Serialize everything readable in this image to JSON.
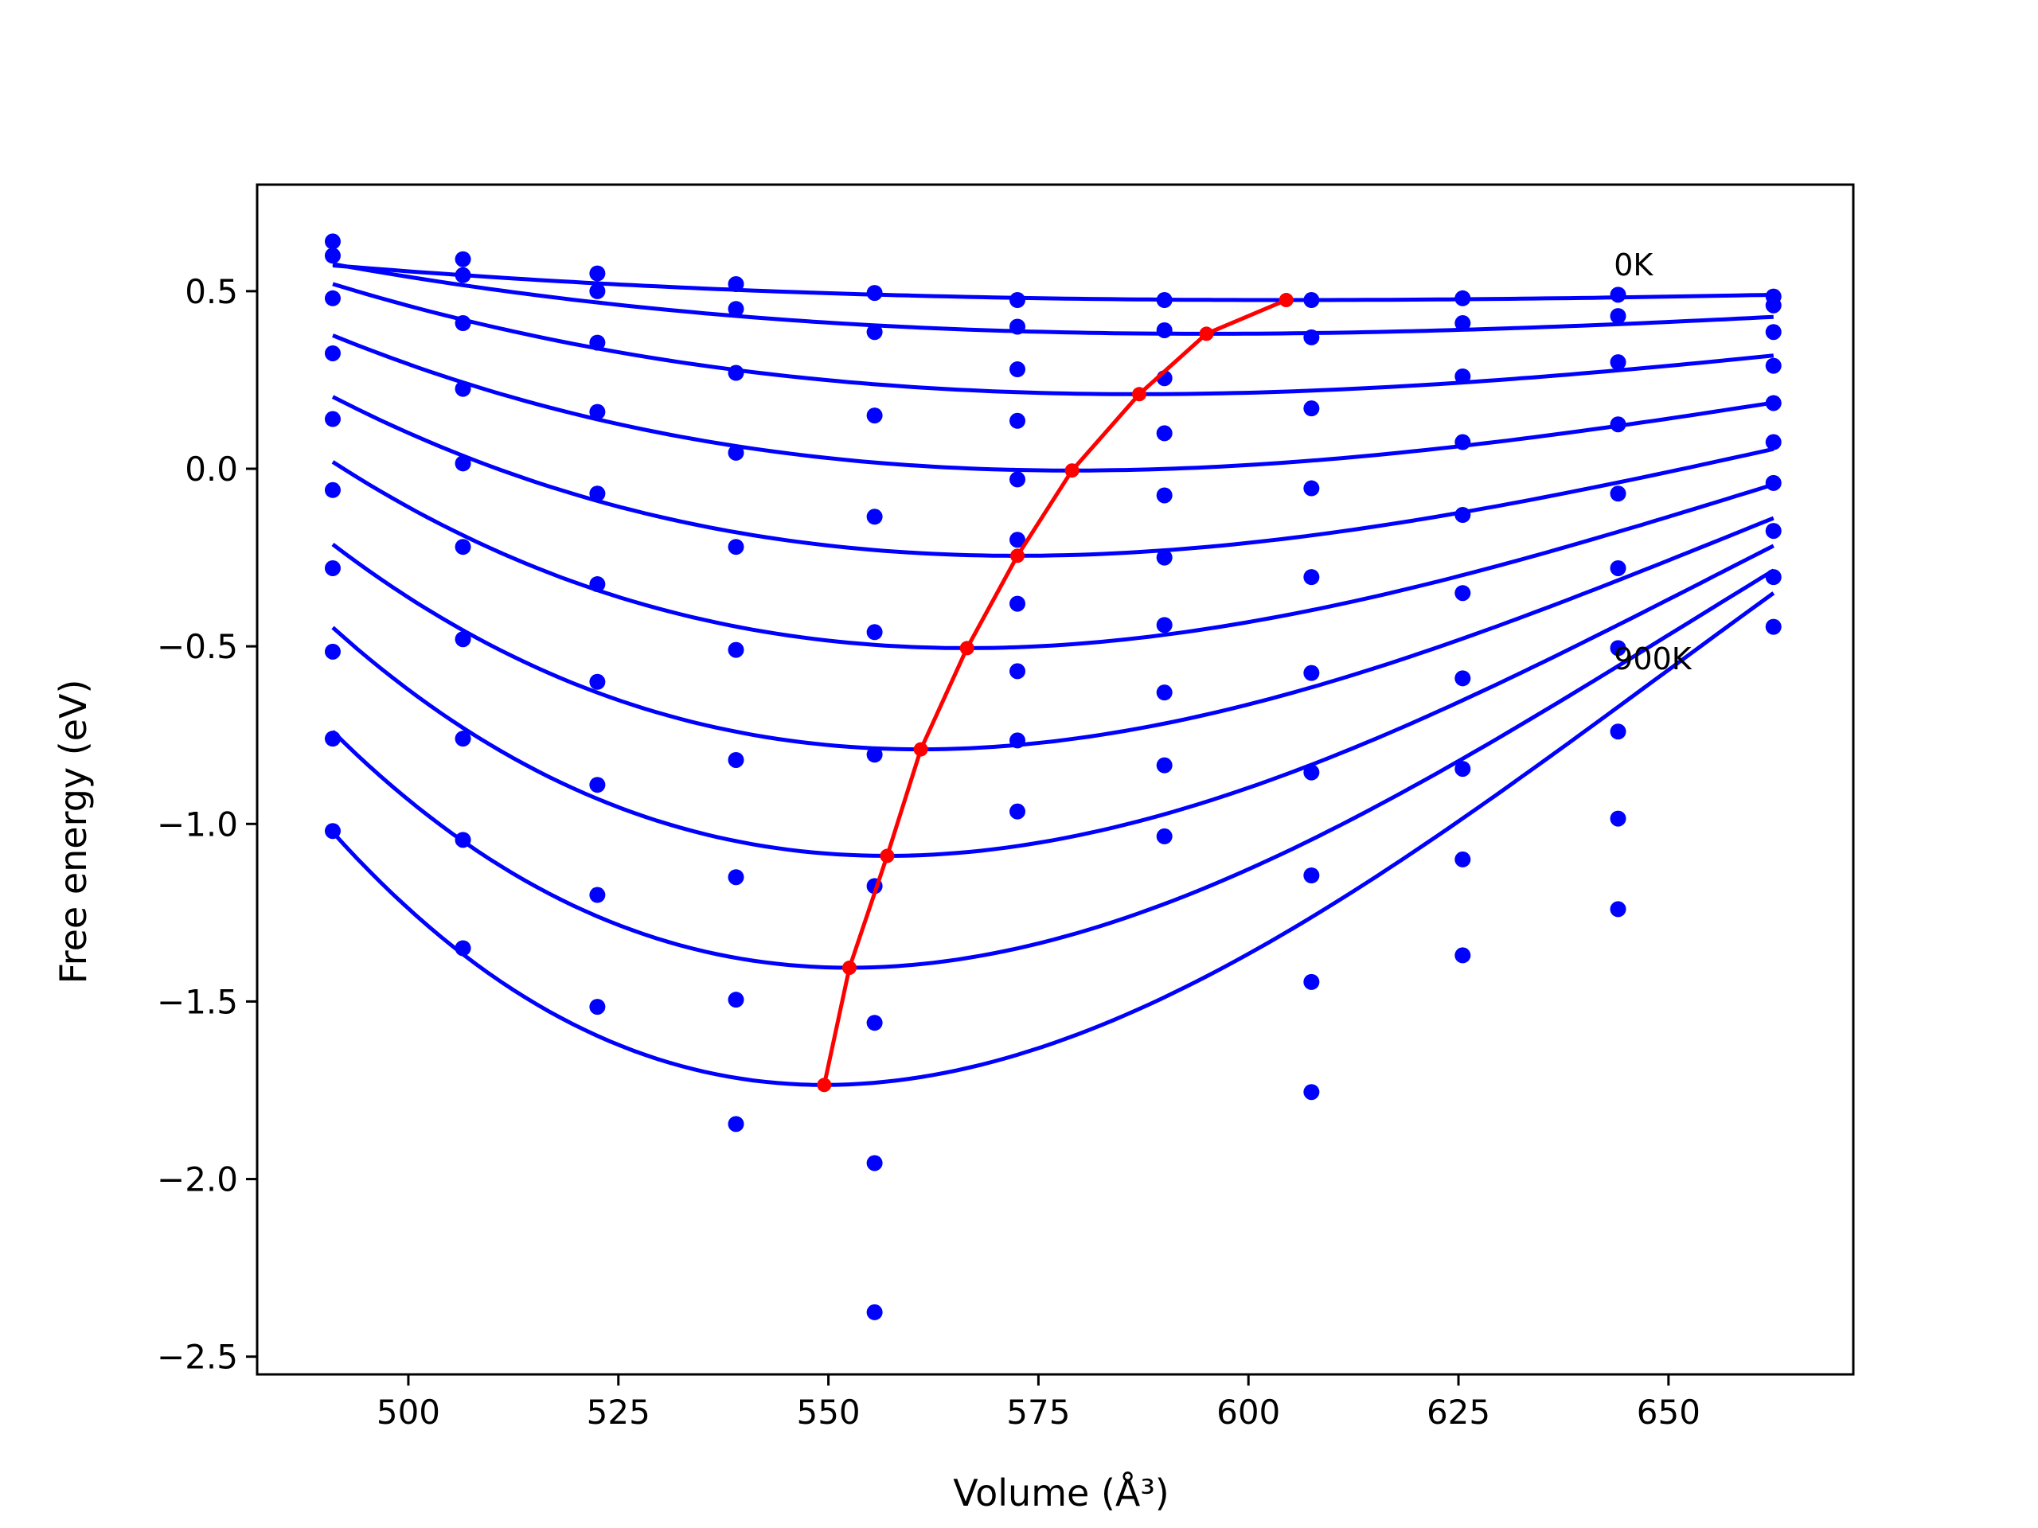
{
  "chart_data": {
    "type": "line",
    "xlabel": "Volume (Å³)",
    "ylabel": "Free energy (eV)",
    "xlim": [
      482,
      672
    ],
    "ylim": [
      -2.55,
      0.8
    ],
    "x_ticks": [
      {
        "v": 500,
        "label": "500"
      },
      {
        "v": 525,
        "label": "525"
      },
      {
        "v": 550,
        "label": "550"
      },
      {
        "v": 575,
        "label": "575"
      },
      {
        "v": 600,
        "label": "600"
      },
      {
        "v": 625,
        "label": "625"
      },
      {
        "v": 650,
        "label": "650"
      }
    ],
    "y_ticks": [
      {
        "v": 0.5,
        "label": "0.5"
      },
      {
        "v": 0.0,
        "label": "0.0"
      },
      {
        "v": -0.5,
        "label": "−0.5"
      },
      {
        "v": -1.0,
        "label": "−1.0"
      },
      {
        "v": -1.5,
        "label": "−1.5"
      },
      {
        "v": -2.0,
        "label": "−2.0"
      },
      {
        "v": -2.5,
        "label": "−2.5"
      }
    ],
    "grid": false,
    "legend": "none",
    "colors": {
      "curves": "#0000ff",
      "points": "#0000ff",
      "minimum_line": "#ff0000"
    },
    "annotations": [
      {
        "text": "0K",
        "x": 643.5,
        "y": 0.545
      },
      {
        "text": "900K",
        "x": 643.5,
        "y": -0.565
      }
    ],
    "x_points": [
      491,
      506.5,
      522.5,
      539,
      555.5,
      572.5,
      590,
      607.5,
      625.5,
      644,
      662.5
    ],
    "point_series": [
      [
        0.64,
        0.59,
        0.55,
        0.52,
        0.495,
        0.475,
        0.475,
        0.475,
        0.48,
        0.49,
        0.485
      ],
      [
        0.6,
        0.545,
        0.5,
        0.45,
        0.385,
        0.4,
        0.39,
        0.37,
        0.41,
        0.43,
        0.46
      ],
      [
        0.48,
        0.41,
        0.355,
        0.27,
        0.15,
        0.28,
        0.255,
        0.17,
        0.26,
        0.3,
        0.385
      ],
      [
        0.325,
        0.225,
        0.16,
        0.045,
        -0.135,
        0.135,
        0.1,
        -0.055,
        0.075,
        0.125,
        0.29
      ],
      [
        0.14,
        0.015,
        -0.07,
        -0.22,
        -0.46,
        -0.03,
        -0.075,
        -0.305,
        -0.13,
        -0.07,
        0.185
      ],
      [
        -0.06,
        -0.22,
        -0.325,
        -0.51,
        -0.805,
        -0.2,
        -0.25,
        -0.575,
        -0.35,
        -0.28,
        0.075
      ],
      [
        -0.28,
        -0.48,
        -0.6,
        -0.82,
        -1.175,
        -0.38,
        -0.44,
        -0.855,
        -0.59,
        -0.505,
        -0.04
      ],
      [
        -0.515,
        -0.76,
        -0.89,
        -1.15,
        -1.56,
        -0.57,
        -0.63,
        -1.145,
        -0.845,
        -0.74,
        -0.175
      ],
      [
        -0.76,
        -1.045,
        -1.2,
        -1.495,
        -1.955,
        -0.765,
        -0.835,
        -1.445,
        -1.1,
        -0.985,
        -0.305
      ],
      [
        -1.02,
        -1.35,
        -1.515,
        -1.845,
        -2.375,
        -0.965,
        -1.035,
        -1.755,
        -1.37,
        -1.24,
        -0.445
      ]
    ],
    "fitted_curves": [
      {
        "v_min": 604.5,
        "f_min": 0.475,
        "c": 5.5e-06
      },
      {
        "v_min": 595,
        "f_min": 0.38,
        "c": 1.35e-05
      },
      {
        "v_min": 587,
        "f_min": 0.21,
        "c": 2.55e-05
      },
      {
        "v_min": 579,
        "f_min": -0.005,
        "c": 3.8e-05
      },
      {
        "v_min": 572.5,
        "f_min": -0.245,
        "c": 5.3e-05
      },
      {
        "v_min": 566.5,
        "f_min": -0.505,
        "c": 7.35e-05
      },
      {
        "v_min": 561,
        "f_min": -0.79,
        "c": 9.55e-05
      },
      {
        "v_min": 557,
        "f_min": -1.09,
        "c": 0.000121
      },
      {
        "v_min": 552.5,
        "f_min": -1.405,
        "c": 0.000146
      },
      {
        "v_min": 549.5,
        "f_min": -1.735,
        "c": 0.000174
      }
    ],
    "minimum_points": [
      {
        "x": 604.5,
        "y": 0.475
      },
      {
        "x": 595,
        "y": 0.38
      },
      {
        "x": 587,
        "y": 0.21
      },
      {
        "x": 579,
        "y": -0.005
      },
      {
        "x": 572.5,
        "y": -0.245
      },
      {
        "x": 566.5,
        "y": -0.505
      },
      {
        "x": 561,
        "y": -0.79
      },
      {
        "x": 557,
        "y": -1.09
      },
      {
        "x": 552.5,
        "y": -1.405
      },
      {
        "x": 549.5,
        "y": -1.735
      }
    ]
  }
}
